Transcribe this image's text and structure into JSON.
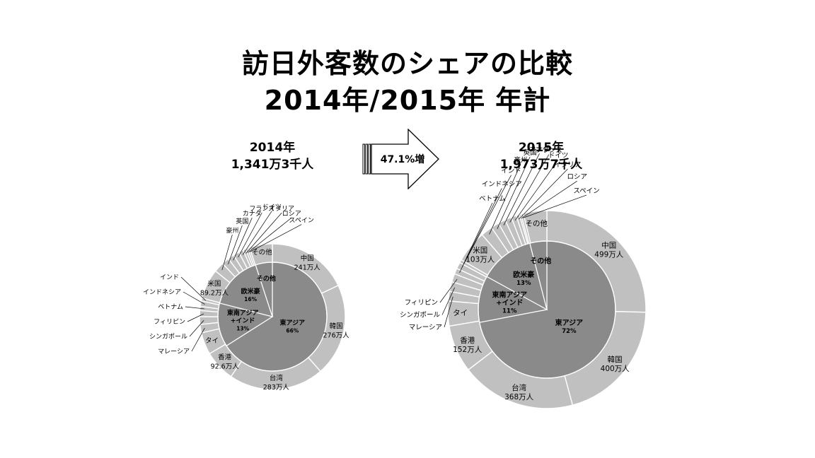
{
  "title": {
    "line1": "訪日外客数のシェアの比較",
    "line2": "2014年/2015年 年計"
  },
  "arrow_label": "47.1%増",
  "colors": {
    "outer": "#c0c0c0",
    "inner": "#8a8a8a",
    "stroke": "#ffffff",
    "leader": "#000000"
  },
  "chart_data": [
    {
      "type": "pie",
      "title": "2014年",
      "subtitle": "1,341万3千人",
      "inner": [
        {
          "name": "東アジア",
          "value": 66,
          "label": "66%"
        },
        {
          "name": "東南アジア+インド",
          "value": 13,
          "label": "13%"
        },
        {
          "name": "欧米豪",
          "value": 16,
          "label": "16%"
        },
        {
          "name": "その他",
          "value": 5,
          "label": ""
        }
      ],
      "outer": [
        {
          "name": "中国",
          "value": 241,
          "value_label": "241万人"
        },
        {
          "name": "韓国",
          "value": 276,
          "value_label": "276万人"
        },
        {
          "name": "台湾",
          "value": 283,
          "value_label": "283万人"
        },
        {
          "name": "香港",
          "value": 92.6,
          "value_label": "92.6万人"
        },
        {
          "name": "タイ",
          "value": 65.8,
          "value_label": ""
        },
        {
          "name": "マレーシア",
          "value": 25,
          "value_label": ""
        },
        {
          "name": "シンガポール",
          "value": 22.8,
          "value_label": ""
        },
        {
          "name": "フィリピン",
          "value": 18.4,
          "value_label": ""
        },
        {
          "name": "ベトナム",
          "value": 12.4,
          "value_label": ""
        },
        {
          "name": "インドネシア",
          "value": 15.9,
          "value_label": ""
        },
        {
          "name": "インド",
          "value": 8.8,
          "value_label": ""
        },
        {
          "name": "米国",
          "value": 89.2,
          "value_label": "89.2万人"
        },
        {
          "name": "豪州",
          "value": 30.3,
          "value_label": ""
        },
        {
          "name": "英国",
          "value": 22,
          "value_label": ""
        },
        {
          "name": "カナダ",
          "value": 18.3,
          "value_label": ""
        },
        {
          "name": "フランス",
          "value": 17.9,
          "value_label": ""
        },
        {
          "name": "ドイツ",
          "value": 14,
          "value_label": ""
        },
        {
          "name": "イタリア",
          "value": 8,
          "value_label": ""
        },
        {
          "name": "ロシア",
          "value": 6.4,
          "value_label": ""
        },
        {
          "name": "スペイン",
          "value": 6,
          "value_label": ""
        },
        {
          "name": "その他",
          "value": 68,
          "value_label": ""
        }
      ]
    },
    {
      "type": "pie",
      "title": "2015年",
      "subtitle": "1,973万7千人",
      "inner": [
        {
          "name": "東アジア",
          "value": 72,
          "label": "72%"
        },
        {
          "name": "東南アジア+インド",
          "value": 11,
          "label": "11%"
        },
        {
          "name": "欧米豪",
          "value": 13,
          "label": "13%"
        },
        {
          "name": "その他",
          "value": 4,
          "label": ""
        }
      ],
      "outer": [
        {
          "name": "中国",
          "value": 499,
          "value_label": "499万人"
        },
        {
          "name": "韓国",
          "value": 400,
          "value_label": "400万人"
        },
        {
          "name": "台湾",
          "value": 368,
          "value_label": "368万人"
        },
        {
          "name": "香港",
          "value": 152,
          "value_label": "152万人"
        },
        {
          "name": "タイ",
          "value": 79.7,
          "value_label": ""
        },
        {
          "name": "マレーシア",
          "value": 30.5,
          "value_label": ""
        },
        {
          "name": "シンガポール",
          "value": 30.9,
          "value_label": ""
        },
        {
          "name": "フィリピン",
          "value": 26.8,
          "value_label": ""
        },
        {
          "name": "ベトナム",
          "value": 18.5,
          "value_label": ""
        },
        {
          "name": "インドネシア",
          "value": 20.5,
          "value_label": ""
        },
        {
          "name": "インド",
          "value": 10.3,
          "value_label": ""
        },
        {
          "name": "米国",
          "value": 103,
          "value_label": "103万人"
        },
        {
          "name": "豪州",
          "value": 37.6,
          "value_label": ""
        },
        {
          "name": "英国",
          "value": 25.8,
          "value_label": ""
        },
        {
          "name": "カナダ",
          "value": 23.1,
          "value_label": ""
        },
        {
          "name": "フランス",
          "value": 21.4,
          "value_label": ""
        },
        {
          "name": "ドイツ",
          "value": 16.3,
          "value_label": ""
        },
        {
          "name": "イタリア",
          "value": 10.3,
          "value_label": ""
        },
        {
          "name": "ロシア",
          "value": 5.4,
          "value_label": ""
        },
        {
          "name": "スペイン",
          "value": 7.7,
          "value_label": ""
        },
        {
          "name": "その他",
          "value": 75,
          "value_label": ""
        }
      ]
    }
  ]
}
